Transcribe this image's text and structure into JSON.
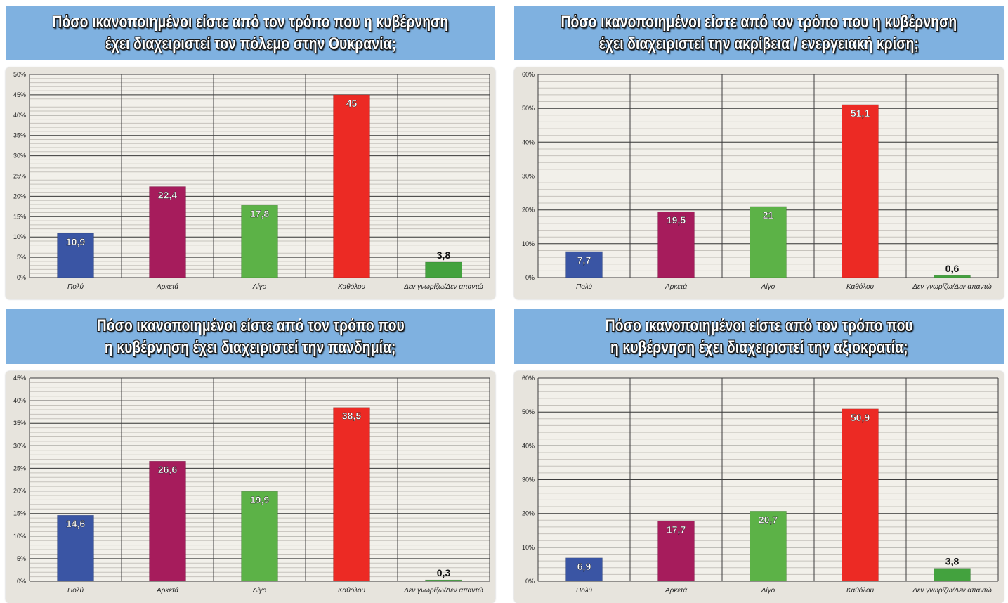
{
  "chart_data": [
    {
      "type": "bar",
      "title": [
        "Πόσο ικανοποιημένοι είστε από τον τρόπο που η κυβέρνηση",
        "έχει διαχειριστεί τον πόλεμο στην Ουκρανία;"
      ],
      "categories": [
        "Πολύ",
        "Αρκετά",
        "Λίγο",
        "Καθόλου",
        "Δεν γνωρίζω/Δεν απαντώ"
      ],
      "values": [
        10.9,
        22.4,
        17.8,
        45,
        3.8
      ],
      "labels": [
        "10,9",
        "22,4",
        "17,8",
        "45",
        "3,8"
      ],
      "ylim": [
        0,
        50
      ],
      "yticks": [
        "0%",
        "5%",
        "10%",
        "15%",
        "20%",
        "25%",
        "30%",
        "35%",
        "40%",
        "45%",
        "50%"
      ],
      "grid": true
    },
    {
      "type": "bar",
      "title": [
        "Πόσο ικανοποιημένοι είστε από τον τρόπο που η κυβέρνηση",
        "έχει διαχειριστεί την ακρίβεια / ενεργειακή κρίση;"
      ],
      "categories": [
        "Πολύ",
        "Αρκετά",
        "Λίγο",
        "Καθόλου",
        "Δεν γνωρίζω/Δεν απαντώ"
      ],
      "values": [
        7.7,
        19.5,
        21,
        51.1,
        0.6
      ],
      "labels": [
        "7,7",
        "19,5",
        "21",
        "51,1",
        "0,6"
      ],
      "ylim": [
        0,
        60
      ],
      "yticks": [
        "0%",
        "10%",
        "20%",
        "30%",
        "40%",
        "50%",
        "60%"
      ],
      "grid": true
    },
    {
      "type": "bar",
      "title": [
        "Πόσο ικανοποιημένοι είστε από τον τρόπο που",
        "η κυβέρνηση έχει διαχειριστεί την πανδημία;"
      ],
      "categories": [
        "Πολύ",
        "Αρκετά",
        "Λίγο",
        "Καθόλου",
        "Δεν γνωρίζω/Δεν απαντώ"
      ],
      "values": [
        14.6,
        26.6,
        19.9,
        38.5,
        0.3
      ],
      "labels": [
        "14,6",
        "26,6",
        "19,9",
        "38,5",
        "0,3"
      ],
      "ylim": [
        0,
        45
      ],
      "yticks": [
        "0%",
        "5%",
        "10%",
        "15%",
        "20%",
        "25%",
        "30%",
        "35%",
        "40%",
        "45%"
      ],
      "grid": true
    },
    {
      "type": "bar",
      "title": [
        "Πόσο ικανοποιημένοι είστε από τον τρόπο που",
        "η κυβέρνηση  έχει διαχειριστεί την αξιοκρατία;"
      ],
      "categories": [
        "Πολύ",
        "Αρκετά",
        "Λίγο",
        "Καθόλου",
        "Δεν γνωρίζω/Δεν απαντώ"
      ],
      "values": [
        6.9,
        17.7,
        20.7,
        50.9,
        3.8
      ],
      "labels": [
        "6,9",
        "17,7",
        "20,7",
        "50,9",
        "3,8"
      ],
      "ylim": [
        0,
        60
      ],
      "yticks": [
        "0%",
        "10%",
        "20%",
        "30%",
        "40%",
        "50%",
        "60%"
      ],
      "grid": true
    }
  ],
  "colors": {
    "bars": [
      "#3a55a4",
      "#a61c5c",
      "#5cb247",
      "#ec2a24",
      "#43a23e"
    ],
    "banner": "#7fb1e0",
    "panel": "#e7e4dd",
    "major_grid": "#3d3d3d",
    "minor_grid": "#c6c3bc"
  }
}
